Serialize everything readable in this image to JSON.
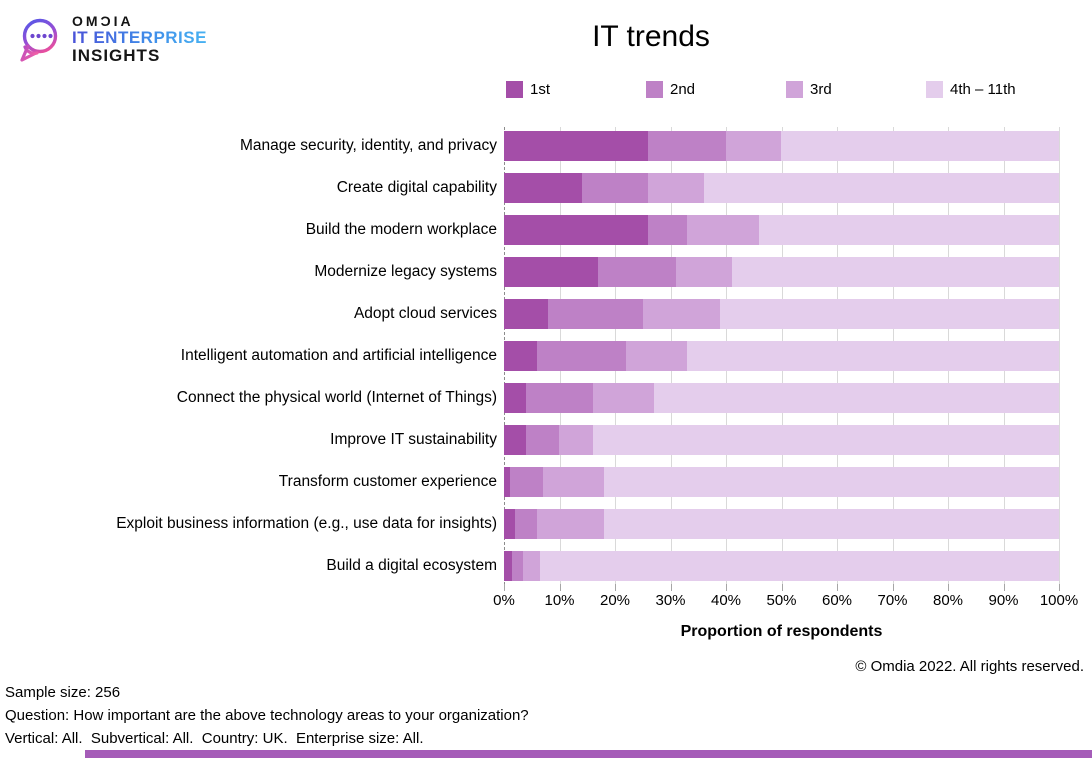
{
  "brand": {
    "wordmark": "OMƆIA",
    "line2": "IT ENTERPRISE",
    "line3": "INSIGHTS"
  },
  "chart_data": {
    "type": "bar",
    "orientation": "horizontal",
    "stacked": true,
    "title": "IT trends",
    "xlabel": "Proportion of respondents",
    "xlim": [
      0,
      100
    ],
    "x_ticks": [
      "0%",
      "10%",
      "20%",
      "30%",
      "40%",
      "50%",
      "60%",
      "70%",
      "80%",
      "90%",
      "100%"
    ],
    "legend_position": "top",
    "grid": "vertical",
    "categories": [
      "Manage security, identity, and privacy",
      "Create digital capability",
      "Build the modern workplace",
      "Modernize legacy systems",
      "Adopt cloud services",
      "Intelligent automation and artificial intelligence",
      "Connect the physical world (Internet of Things)",
      "Improve IT sustainability",
      "Transform customer experience",
      "Exploit business information (e.g., use data for insights)",
      "Build a digital ecosystem"
    ],
    "series": [
      {
        "name": "1st",
        "color": "#A44EA8",
        "values": [
          26,
          14,
          26,
          17,
          8,
          6,
          4,
          4,
          1,
          2,
          1.5
        ]
      },
      {
        "name": "2nd",
        "color": "#BE81C6",
        "values": [
          14,
          12,
          7,
          14,
          17,
          16,
          12,
          6,
          6,
          4,
          2
        ]
      },
      {
        "name": "3rd",
        "color": "#D0A4D9",
        "values": [
          10,
          10,
          13,
          10,
          14,
          11,
          11,
          6,
          11,
          12,
          3
        ]
      },
      {
        "name": "4th – 11th",
        "color": "#E4CDEC",
        "values": [
          50,
          64,
          54,
          59,
          61,
          67,
          73,
          84,
          82,
          82,
          93.5
        ]
      }
    ]
  },
  "footer": {
    "copyright": "© Omdia 2022. All rights reserved.",
    "notes": [
      "Sample size: 256",
      "Question: How important are the above technology areas to your organization?",
      "Vertical: All.  Subvertical: All.  Country: UK.  Enterprise size: All."
    ]
  },
  "colors": {
    "gridline": "#D9D9D9",
    "tick": "#A6A6A6",
    "bottom_strip": "#A55CB8"
  }
}
